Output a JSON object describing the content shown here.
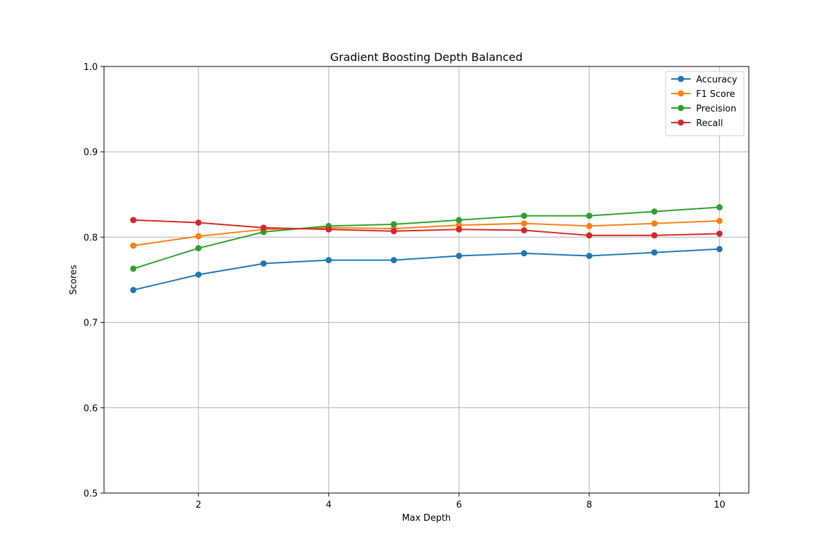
{
  "chart_data": {
    "type": "line",
    "title": "Gradient Boosting Depth Balanced",
    "xlabel": "Max Depth",
    "ylabel": "Scores",
    "xlim": [
      0.55,
      10.45
    ],
    "ylim": [
      0.5,
      1.0
    ],
    "xticks": [
      2,
      4,
      6,
      8,
      10
    ],
    "yticks": [
      0.5,
      0.6,
      0.7,
      0.8,
      0.9,
      1.0
    ],
    "xtick_labels": [
      "2",
      "4",
      "6",
      "8",
      "10"
    ],
    "ytick_labels": [
      "0.5",
      "0.6",
      "0.7",
      "0.8",
      "0.9",
      "1.0"
    ],
    "grid": true,
    "legend_position": "top-right",
    "x": [
      1,
      2,
      3,
      4,
      5,
      6,
      7,
      8,
      9,
      10
    ],
    "series": [
      {
        "name": "Accuracy",
        "color": "#1f77b4",
        "values": [
          0.738,
          0.756,
          0.769,
          0.773,
          0.773,
          0.778,
          0.781,
          0.778,
          0.782,
          0.786
        ]
      },
      {
        "name": "F1 Score",
        "color": "#ff7f0e",
        "values": [
          0.79,
          0.801,
          0.809,
          0.811,
          0.81,
          0.814,
          0.816,
          0.813,
          0.816,
          0.819
        ]
      },
      {
        "name": "Precision",
        "color": "#2ca02c",
        "values": [
          0.763,
          0.787,
          0.806,
          0.813,
          0.815,
          0.82,
          0.825,
          0.825,
          0.83,
          0.835
        ]
      },
      {
        "name": "Recall",
        "color": "#d62728",
        "values": [
          0.82,
          0.817,
          0.811,
          0.809,
          0.807,
          0.809,
          0.808,
          0.802,
          0.802,
          0.804
        ]
      }
    ]
  }
}
